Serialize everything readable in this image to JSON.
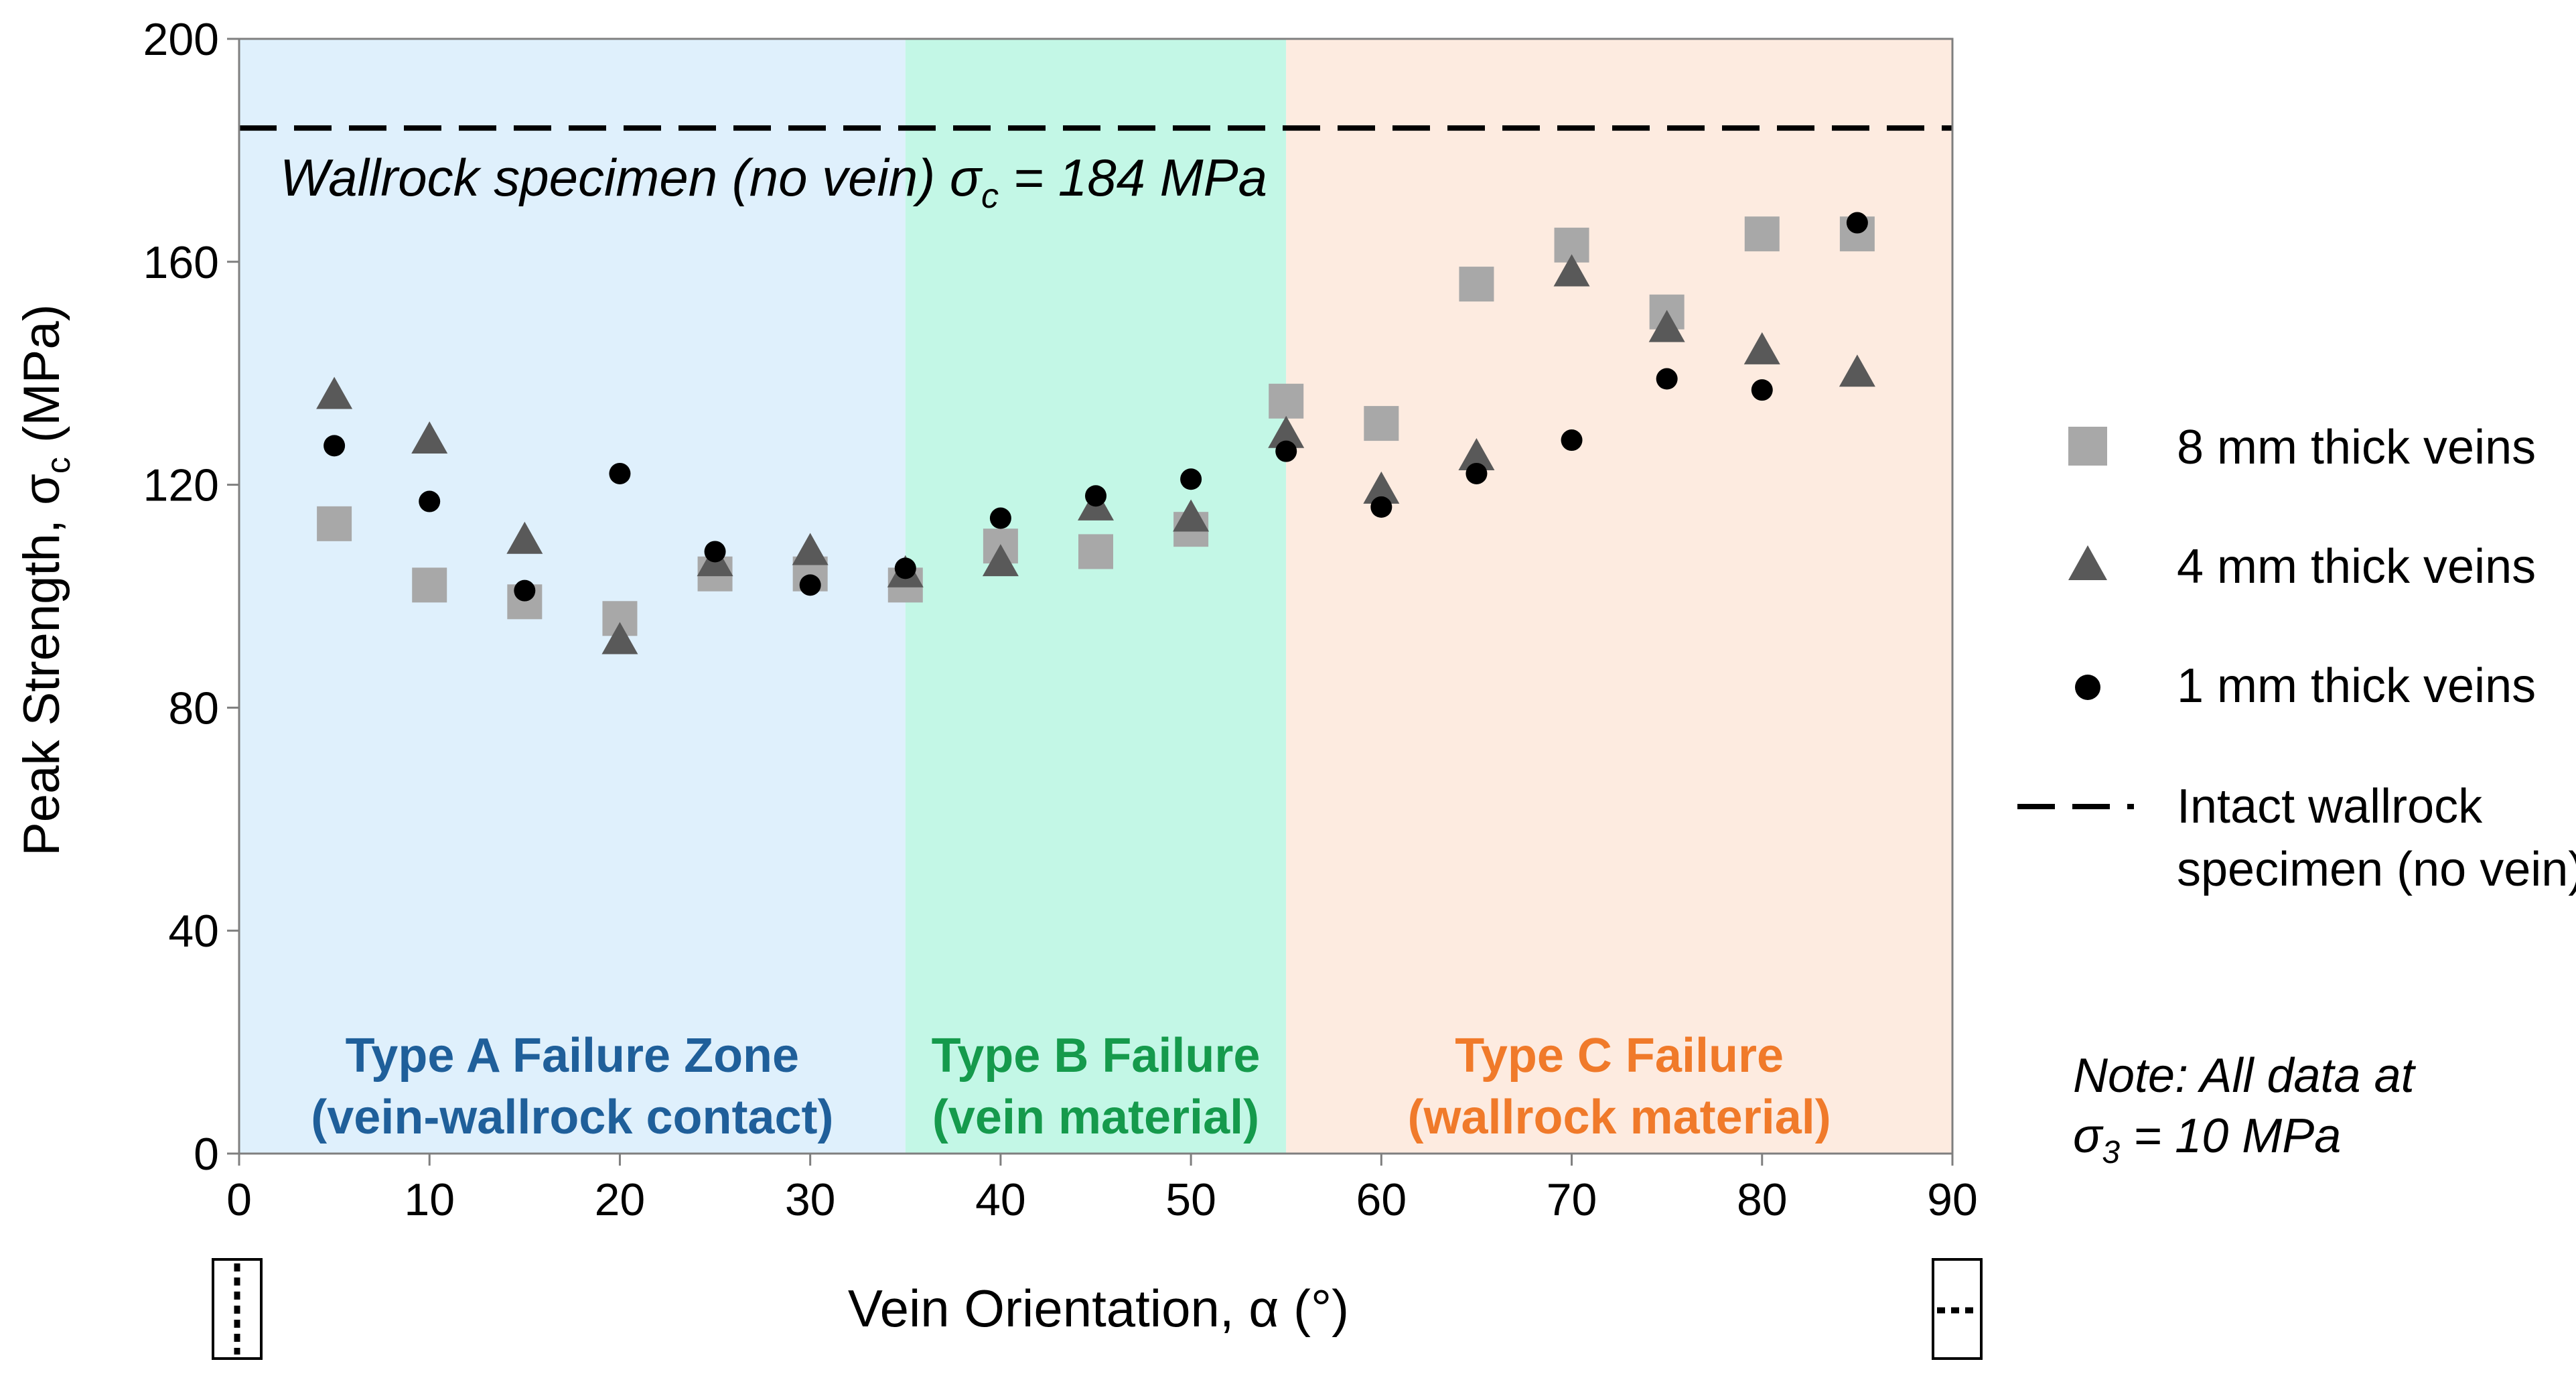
{
  "chart_data": {
    "type": "scatter",
    "xlabel": "Vein Orientation, α (°)",
    "ylabel_main": "Peak Strength, σ",
    "ylabel_sub": "c",
    "ylabel_tail": " (MPa)",
    "xlim": [
      0,
      90
    ],
    "ylim": [
      0,
      200
    ],
    "xticks": [
      0,
      10,
      20,
      30,
      40,
      50,
      60,
      70,
      80,
      90
    ],
    "yticks": [
      0,
      40,
      80,
      120,
      160,
      200
    ],
    "grid": false,
    "zones": [
      {
        "name": "type-a",
        "x0": 0,
        "x1": 35,
        "color": "#dff0fc",
        "label_line1": "Type A Failure Zone",
        "label_line2": "(vein-wallrock contact)",
        "label_color": "#1f5f9a"
      },
      {
        "name": "type-b",
        "x0": 35,
        "x1": 55,
        "color": "#c3f7e6",
        "label_line1": "Type B Failure",
        "label_line2": "(vein material)",
        "label_color": "#159a4c"
      },
      {
        "name": "type-c",
        "x0": 55,
        "x1": 90,
        "color": "#fdebe0",
        "label_line1": "Type C Failure",
        "label_line2": "(wallrock material)",
        "label_color": "#f07a2a"
      }
    ],
    "reference_line": {
      "y": 184,
      "name": "Intact wallrock specimen (no vein)"
    },
    "reference_annotation": {
      "text_main": "Wallrock specimen (no vein) σ",
      "sub": "c",
      "text_tail": " = 184 MPa"
    },
    "note": {
      "line1": "Note: All data at",
      "line2_main": "σ",
      "line2_sub": "3",
      "line2_tail": " = 10 MPa"
    },
    "series": [
      {
        "name": "8 mm thick veins",
        "marker": "square",
        "color": "#a8a8a8",
        "x": [
          5,
          10,
          15,
          20,
          25,
          30,
          35,
          40,
          45,
          50,
          55,
          60,
          65,
          70,
          75,
          80,
          85
        ],
        "y": [
          113,
          102,
          99,
          96,
          104,
          104,
          102,
          109,
          108,
          112,
          135,
          131,
          156,
          163,
          151,
          165,
          165
        ]
      },
      {
        "name": "4 mm thick veins",
        "marker": "triangle",
        "color": "#595959",
        "x": [
          5,
          10,
          15,
          20,
          25,
          30,
          35,
          40,
          45,
          50,
          55,
          60,
          65,
          70,
          75,
          80,
          85
        ],
        "y": [
          136,
          128,
          110,
          92,
          106,
          108,
          104,
          106,
          116,
          114,
          129,
          119,
          125,
          158,
          148,
          144,
          140
        ]
      },
      {
        "name": "1 mm thick veins",
        "marker": "circle",
        "color": "#000000",
        "x": [
          5,
          10,
          15,
          20,
          25,
          30,
          35,
          40,
          45,
          50,
          55,
          60,
          65,
          70,
          75,
          80,
          85
        ],
        "y": [
          127,
          117,
          101,
          122,
          108,
          102,
          105,
          114,
          118,
          121,
          126,
          116,
          122,
          128,
          139,
          137,
          167
        ]
      }
    ],
    "legend": [
      {
        "label": "8 mm thick veins",
        "marker": "square"
      },
      {
        "label": "4 mm thick veins",
        "marker": "triangle"
      },
      {
        "label": "1 mm thick veins",
        "marker": "circle"
      },
      {
        "label_line1": "Intact wallrock",
        "label_line2": "specimen (no vein)",
        "marker": "dashed-line"
      }
    ],
    "legend_position": "right"
  }
}
